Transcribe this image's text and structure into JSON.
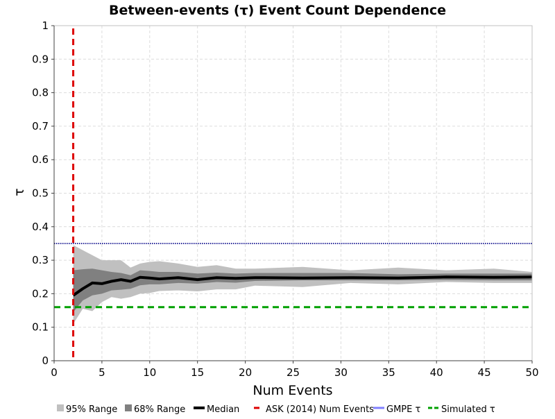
{
  "chart_data": {
    "type": "area",
    "title": "Between-events (τ) Event Count Dependence",
    "xlabel": "Num Events",
    "ylabel": "τ",
    "xlim": [
      0,
      50
    ],
    "ylim": [
      0,
      1
    ],
    "xticks": [
      0,
      5,
      10,
      15,
      20,
      25,
      30,
      35,
      40,
      45,
      50
    ],
    "yticks": [
      0,
      0.1,
      0.2,
      0.3,
      0.4,
      0.5,
      0.6,
      0.7,
      0.8,
      0.9,
      1
    ],
    "ytick_labels": [
      "0",
      "0.1",
      "0.2",
      "0.3",
      "0.4",
      "0.5",
      "0.6",
      "0.7",
      "0.8",
      "0.9",
      "1"
    ],
    "grid": true,
    "legend_position": "bottom",
    "x": [
      2,
      3,
      4,
      5,
      6,
      7,
      8,
      9,
      10,
      11,
      13,
      15,
      17,
      19,
      21,
      26,
      31,
      36,
      41,
      46,
      50
    ],
    "series": [
      {
        "name": "95% Range",
        "kind": "band",
        "color": "#c0c0c0",
        "lower": [
          0.11,
          0.155,
          0.148,
          0.175,
          0.19,
          0.185,
          0.19,
          0.2,
          0.202,
          0.208,
          0.21,
          0.207,
          0.213,
          0.213,
          0.224,
          0.22,
          0.232,
          0.228,
          0.235,
          0.232,
          0.232
        ],
        "upper": [
          0.345,
          0.33,
          0.315,
          0.3,
          0.3,
          0.3,
          0.278,
          0.29,
          0.295,
          0.297,
          0.29,
          0.28,
          0.285,
          0.275,
          0.275,
          0.28,
          0.27,
          0.278,
          0.27,
          0.275,
          0.265
        ]
      },
      {
        "name": "68% Range",
        "kind": "band",
        "color": "#808080",
        "lower": [
          0.145,
          0.18,
          0.195,
          0.2,
          0.21,
          0.212,
          0.215,
          0.225,
          0.228,
          0.228,
          0.232,
          0.23,
          0.235,
          0.233,
          0.238,
          0.24,
          0.24,
          0.24,
          0.241,
          0.24,
          0.24
        ],
        "upper": [
          0.27,
          0.273,
          0.275,
          0.27,
          0.265,
          0.262,
          0.255,
          0.27,
          0.268,
          0.265,
          0.265,
          0.26,
          0.263,
          0.26,
          0.262,
          0.262,
          0.262,
          0.258,
          0.26,
          0.26,
          0.26
        ]
      },
      {
        "name": "Median",
        "kind": "line",
        "color": "#000000",
        "values": [
          0.195,
          0.215,
          0.232,
          0.23,
          0.237,
          0.242,
          0.237,
          0.249,
          0.247,
          0.244,
          0.248,
          0.242,
          0.248,
          0.246,
          0.248,
          0.247,
          0.248,
          0.247,
          0.25,
          0.249,
          0.25
        ]
      },
      {
        "name": "ASK (2014) Num Events",
        "kind": "vline",
        "color": "#dd0000",
        "x": 2
      },
      {
        "name": "GMPE τ",
        "kind": "hline",
        "color": "#8080ff",
        "y": 0.35
      },
      {
        "name": "Simulated τ",
        "kind": "hline",
        "color": "#00a000",
        "y": 0.16
      }
    ]
  }
}
